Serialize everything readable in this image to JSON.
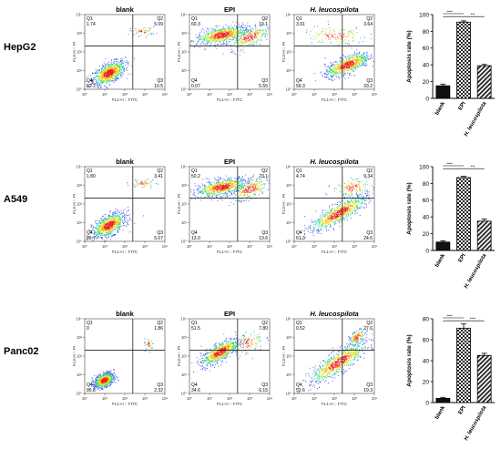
{
  "chart_data": {
    "type": "figure",
    "flow_plots": {
      "xlabel": "FL1-H :: FITC",
      "ylabel": "FL3-H :: PI",
      "quadrant_labels": [
        "Q1",
        "Q2",
        "Q3",
        "Q4"
      ],
      "tick_labels": [
        "10⁰",
        "10¹",
        "10²",
        "10³",
        "10⁴"
      ],
      "rows": [
        {
          "cell_line": "HepG2",
          "plots": [
            {
              "treatment": "blank",
              "q1": "1.74",
              "q2": "5.09",
              "q3": "10.5",
              "q4": "82.7",
              "pattern": "blank"
            },
            {
              "treatment": "EPI",
              "q1": "60.3",
              "q2": "19.1",
              "q3": "5.55",
              "q4": "0.07",
              "pattern": "epi"
            },
            {
              "treatment": "H. leucospilota",
              "q1": "3.91",
              "q2": "3.64",
              "q3": "33.2",
              "q4": "59.3",
              "pattern": "hl_q3"
            }
          ]
        },
        {
          "cell_line": "A549",
          "plots": [
            {
              "treatment": "blank",
              "q1": "1.80",
              "q2": "3.41",
              "q3": "5.07",
              "q4": "89.7",
              "pattern": "blank"
            },
            {
              "treatment": "EPI",
              "q1": "50.2",
              "q2": "23.1",
              "q3": "13.6",
              "q4": "13.0",
              "pattern": "epi"
            },
            {
              "treatment": "H. leucospilota",
              "q1": "4.74",
              "q2": "9.34",
              "q3": "24.6",
              "q4": "61.3",
              "pattern": "diag"
            }
          ]
        },
        {
          "cell_line": "Panc02",
          "plots": [
            {
              "treatment": "blank",
              "q1": "0",
              "q2": "1.86",
              "q3": "2.32",
              "q4": "95.8",
              "pattern": "blank_tight"
            },
            {
              "treatment": "EPI",
              "q1": "51.5",
              "q2": "7.80",
              "q3": "6.15",
              "q4": "34.6",
              "pattern": "epi_low"
            },
            {
              "treatment": "H. leucospilota",
              "q1": "0.52",
              "q2": "27.6",
              "q3": "19.3",
              "q4": "52.6",
              "pattern": "diag_q2"
            }
          ]
        }
      ]
    },
    "bar_charts": {
      "type": "bar",
      "ylabel": "Apoptosis rate (%)",
      "categories": [
        "blank",
        "EPI",
        "H. leucospilota"
      ],
      "panels": [
        {
          "cell_line": "HepG2",
          "values": [
            15,
            91,
            39
          ],
          "errors": [
            2,
            1.5,
            1.5
          ],
          "ylim": [
            0,
            100
          ],
          "yticks": [
            0,
            20,
            40,
            60,
            80,
            100
          ],
          "significance": [
            {
              "pair": [
                0,
                1
              ],
              "label": "****"
            },
            {
              "pair": [
                0,
                2
              ],
              "label": "***"
            }
          ]
        },
        {
          "cell_line": "A549",
          "values": [
            10,
            87,
            35
          ],
          "errors": [
            1.5,
            1.5,
            2.5
          ],
          "ylim": [
            0,
            100
          ],
          "yticks": [
            0,
            20,
            40,
            60,
            80,
            100
          ],
          "significance": [
            {
              "pair": [
                0,
                1
              ],
              "label": "****"
            },
            {
              "pair": [
                0,
                2
              ],
              "label": "***"
            }
          ]
        },
        {
          "cell_line": "Panc02",
          "values": [
            4,
            71,
            45
          ],
          "errors": [
            1,
            4,
            2
          ],
          "ylim": [
            0,
            80
          ],
          "yticks": [
            0,
            20,
            40,
            60,
            80
          ],
          "significance": [
            {
              "pair": [
                0,
                1
              ],
              "label": "****"
            },
            {
              "pair": [
                0,
                2
              ],
              "label": "****"
            }
          ]
        }
      ]
    }
  }
}
